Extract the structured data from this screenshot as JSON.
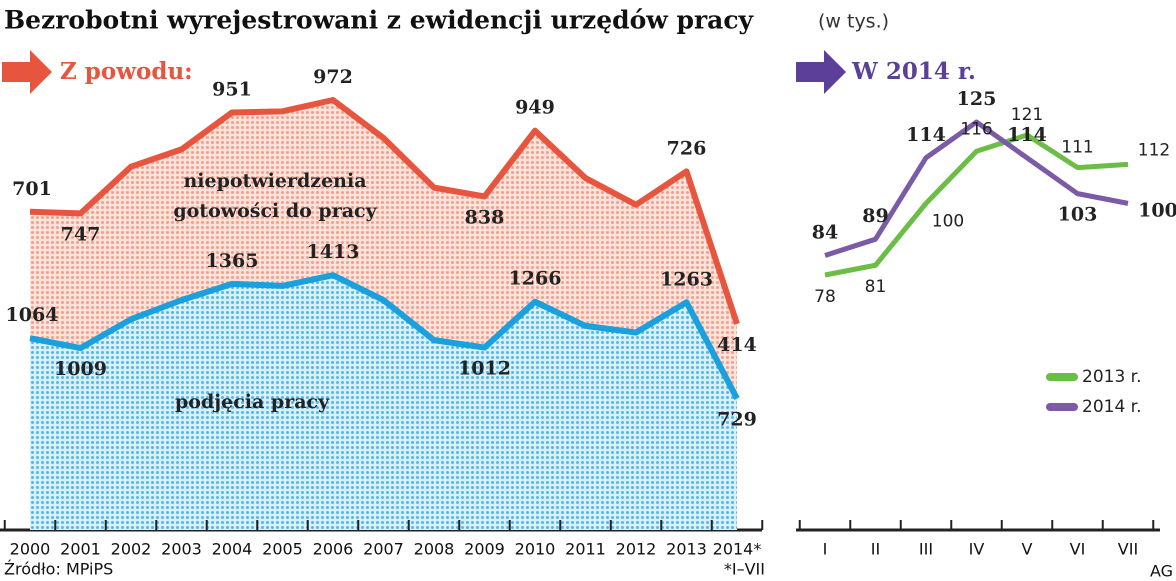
{
  "title": "Bezrobotni wyrejestrowani z ewidencji urzędów pracy",
  "subtitle": "(w tys.)",
  "source": "Źródło: MPiPS",
  "footnote": "*I–VII",
  "author": "AG",
  "chart_data": [
    {
      "type": "stacked-area",
      "heading": "Z powodu:",
      "categories": [
        "2000",
        "2001",
        "2002",
        "2003",
        "2004",
        "2005",
        "2006",
        "2007",
        "2008",
        "2009",
        "2010",
        "2011",
        "2012",
        "2013",
        "2014*"
      ],
      "series": [
        {
          "name": "podjęcia pracy",
          "color": "#1aa0dc",
          "values": [
            1064,
            1009,
            1169,
            1275,
            1365,
            1354,
            1413,
            1275,
            1053,
            1012,
            1266,
            1132,
            1095,
            1263,
            729
          ],
          "value_labels": [
            "1064",
            "1009",
            null,
            null,
            "1365",
            null,
            "1413",
            null,
            null,
            "1012",
            "1266",
            null,
            null,
            "1263",
            "729"
          ]
        },
        {
          "name": "niepotwierdzenia gotowości do pracy",
          "color": "#e8553e",
          "values": [
            701,
            747,
            846,
            836,
            951,
            968,
            972,
            899,
            846,
            838,
            949,
            820,
            709,
            726,
            414
          ],
          "value_labels": [
            "701",
            "747",
            null,
            null,
            "951",
            null,
            "972",
            null,
            null,
            "838",
            "949",
            null,
            null,
            "726",
            "414"
          ]
        }
      ]
    },
    {
      "type": "line",
      "heading": "W 2014 r.",
      "categories": [
        "I",
        "II",
        "III",
        "IV",
        "V",
        "VI",
        "VII"
      ],
      "series": [
        {
          "name": "2013 r.",
          "color": "#6cbd45",
          "values": [
            78,
            81,
            100,
            116,
            121,
            111,
            112
          ]
        },
        {
          "name": "2014 r.",
          "color": "#7b5ba8",
          "values": [
            84,
            89,
            114,
            125,
            114,
            103,
            100
          ]
        }
      ]
    }
  ]
}
